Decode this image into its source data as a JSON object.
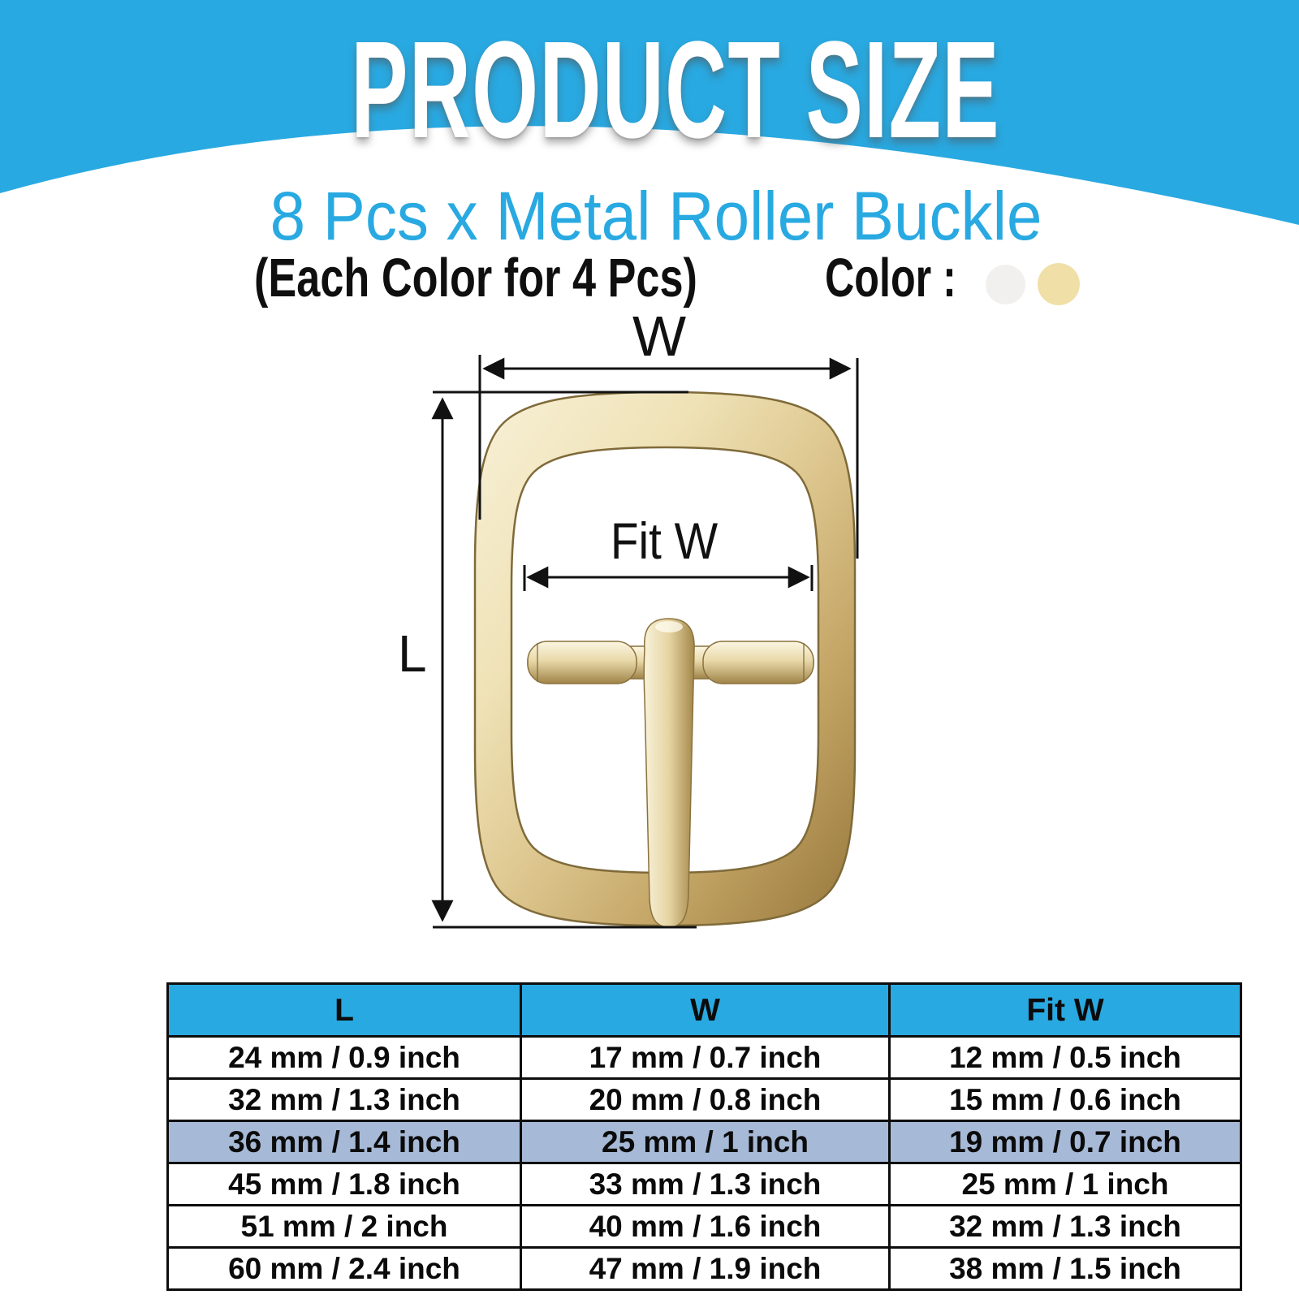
{
  "header": {
    "title": "PRODUCT SIZE"
  },
  "subtitle": "8 Pcs x Metal Roller Buckle",
  "note": {
    "text": "(Each Color for 4 Pcs)",
    "color_label": "Color :",
    "swatches": [
      {
        "name": "silver",
        "hex": "#f1f0ee"
      },
      {
        "name": "gold",
        "hex": "#f0dfa6"
      }
    ]
  },
  "diagram": {
    "labels": {
      "width": "W",
      "fit_width": "Fit W",
      "length": "L"
    },
    "buckle_color": "#d9c38b"
  },
  "colors": {
    "accent_blue": "#29a9e1",
    "highlight_row": "#a6b9d6",
    "line_black": "#111111"
  },
  "size_table": {
    "columns": [
      "L",
      "W",
      "Fit W"
    ],
    "rows": [
      [
        "24 mm / 0.9 inch",
        "17 mm / 0.7 inch",
        "12 mm / 0.5 inch"
      ],
      [
        "32 mm / 1.3 inch",
        "20 mm / 0.8 inch",
        "15 mm / 0.6 inch"
      ],
      [
        "36 mm / 1.4 inch",
        "25 mm / 1 inch",
        "19 mm / 0.7 inch"
      ],
      [
        "45 mm / 1.8 inch",
        "33 mm / 1.3 inch",
        "25 mm / 1 inch"
      ],
      [
        "51 mm / 2 inch",
        "40 mm / 1.6 inch",
        "32 mm / 1.3 inch"
      ],
      [
        "60 mm / 2.4 inch",
        "47 mm / 1.9 inch",
        "38 mm / 1.5 inch"
      ]
    ],
    "highlighted_row_index": 2,
    "header_color": "#29a9e1",
    "highlight_color": "#a6b9d6"
  }
}
